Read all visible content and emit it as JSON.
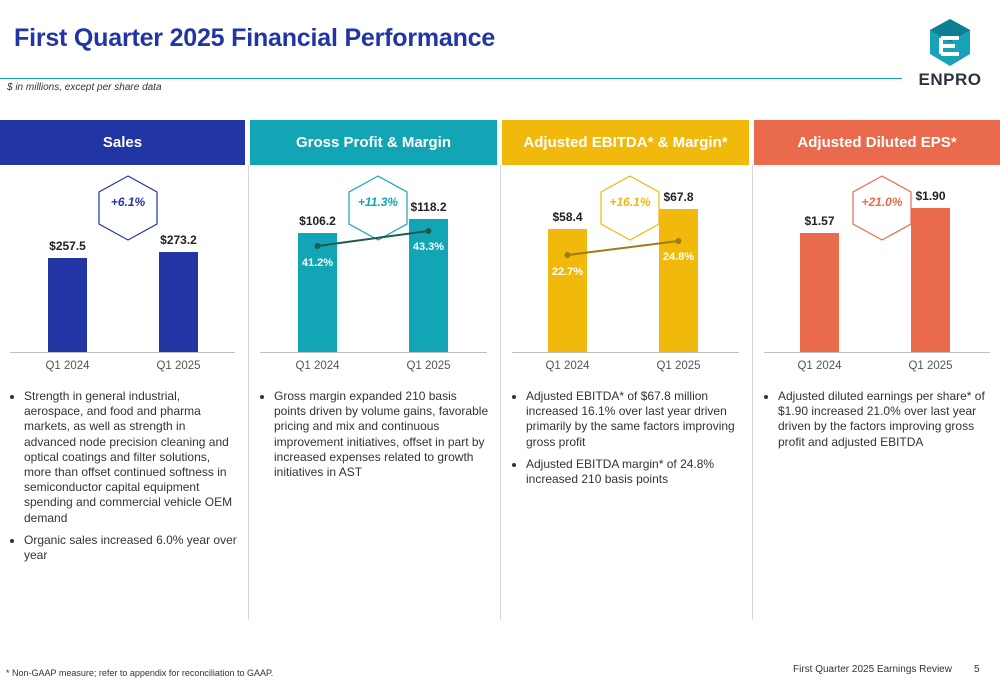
{
  "title": "First Quarter 2025 Financial Performance",
  "subtitle": "$ in millions, except per share data",
  "logo": {
    "text": "ENPRO",
    "icon": "enpro-logo-icon"
  },
  "colors": {
    "sales": "#2135a4",
    "gross": "#12a5b5",
    "ebitda": "#f0b90b",
    "eps": "#e96a4d",
    "title": "#2135a4"
  },
  "panels": [
    {
      "header": "Sales",
      "color": "#2135a4",
      "growth": "+6.1%",
      "growth_color": "#2135a4",
      "bullets": [
        "Strength in general industrial, aerospace, and food and pharma markets, as well as strength in advanced node precision cleaning and optical coatings and filter solutions, more than offset continued softness in semiconductor capital equipment spending and commercial vehicle OEM demand",
        "Organic sales increased 6.0% year over year"
      ]
    },
    {
      "header": "Gross Profit & Margin",
      "color": "#12a5b5",
      "growth": "+11.3%",
      "growth_color": "#12a5b5",
      "bullets": [
        "Gross margin expanded 210 basis points driven by volume gains, favorable pricing and mix and continuous improvement initiatives, offset in part by increased expenses related to growth initiatives in AST"
      ]
    },
    {
      "header": "Adjusted EBITDA* & Margin*",
      "color": "#f0b90b",
      "growth": "+16.1%",
      "growth_color": "#f0b90b",
      "bullets": [
        "Adjusted EBITDA* of $67.8 million increased 16.1% over last year driven primarily by the same factors improving gross profit",
        "Adjusted EBITDA margin* of 24.8% increased 210 basis points"
      ]
    },
    {
      "header": "Adjusted Diluted EPS*",
      "color": "#e96a4d",
      "growth": "+21.0%",
      "growth_color": "#e96a4d",
      "bullets": [
        "Adjusted diluted earnings per share* of $1.90 increased 21.0% over last year driven by the factors improving gross profit and adjusted EBITDA"
      ]
    }
  ],
  "chart_data": [
    {
      "type": "bar",
      "title": "Sales",
      "categories": [
        "Q1 2024",
        "Q1 2025"
      ],
      "values": [
        257.5,
        273.2
      ],
      "value_labels": [
        "$257.5",
        "$273.2"
      ]
    },
    {
      "type": "bar",
      "title": "Gross Profit & Margin",
      "categories": [
        "Q1 2024",
        "Q1 2025"
      ],
      "values": [
        106.2,
        118.2
      ],
      "value_labels": [
        "$106.2",
        "$118.2"
      ],
      "line": {
        "values": [
          41.2,
          43.3
        ],
        "labels": [
          "41.2%",
          "43.3%"
        ]
      }
    },
    {
      "type": "bar",
      "title": "Adjusted EBITDA* & Margin*",
      "categories": [
        "Q1 2024",
        "Q1 2025"
      ],
      "values": [
        58.4,
        67.8
      ],
      "value_labels": [
        "$58.4",
        "$67.8"
      ],
      "line": {
        "values": [
          22.7,
          24.8
        ],
        "labels": [
          "22.7%",
          "24.8%"
        ]
      }
    },
    {
      "type": "bar",
      "title": "Adjusted Diluted EPS*",
      "categories": [
        "Q1 2024",
        "Q1 2025"
      ],
      "values": [
        1.57,
        1.9
      ],
      "value_labels": [
        "$1.57",
        "$1.90"
      ]
    }
  ],
  "footnote": "* Non-GAAP measure; refer to appendix for reconciliation to GAAP.",
  "footer": "First Quarter 2025 Earnings Review",
  "page_number": "5"
}
